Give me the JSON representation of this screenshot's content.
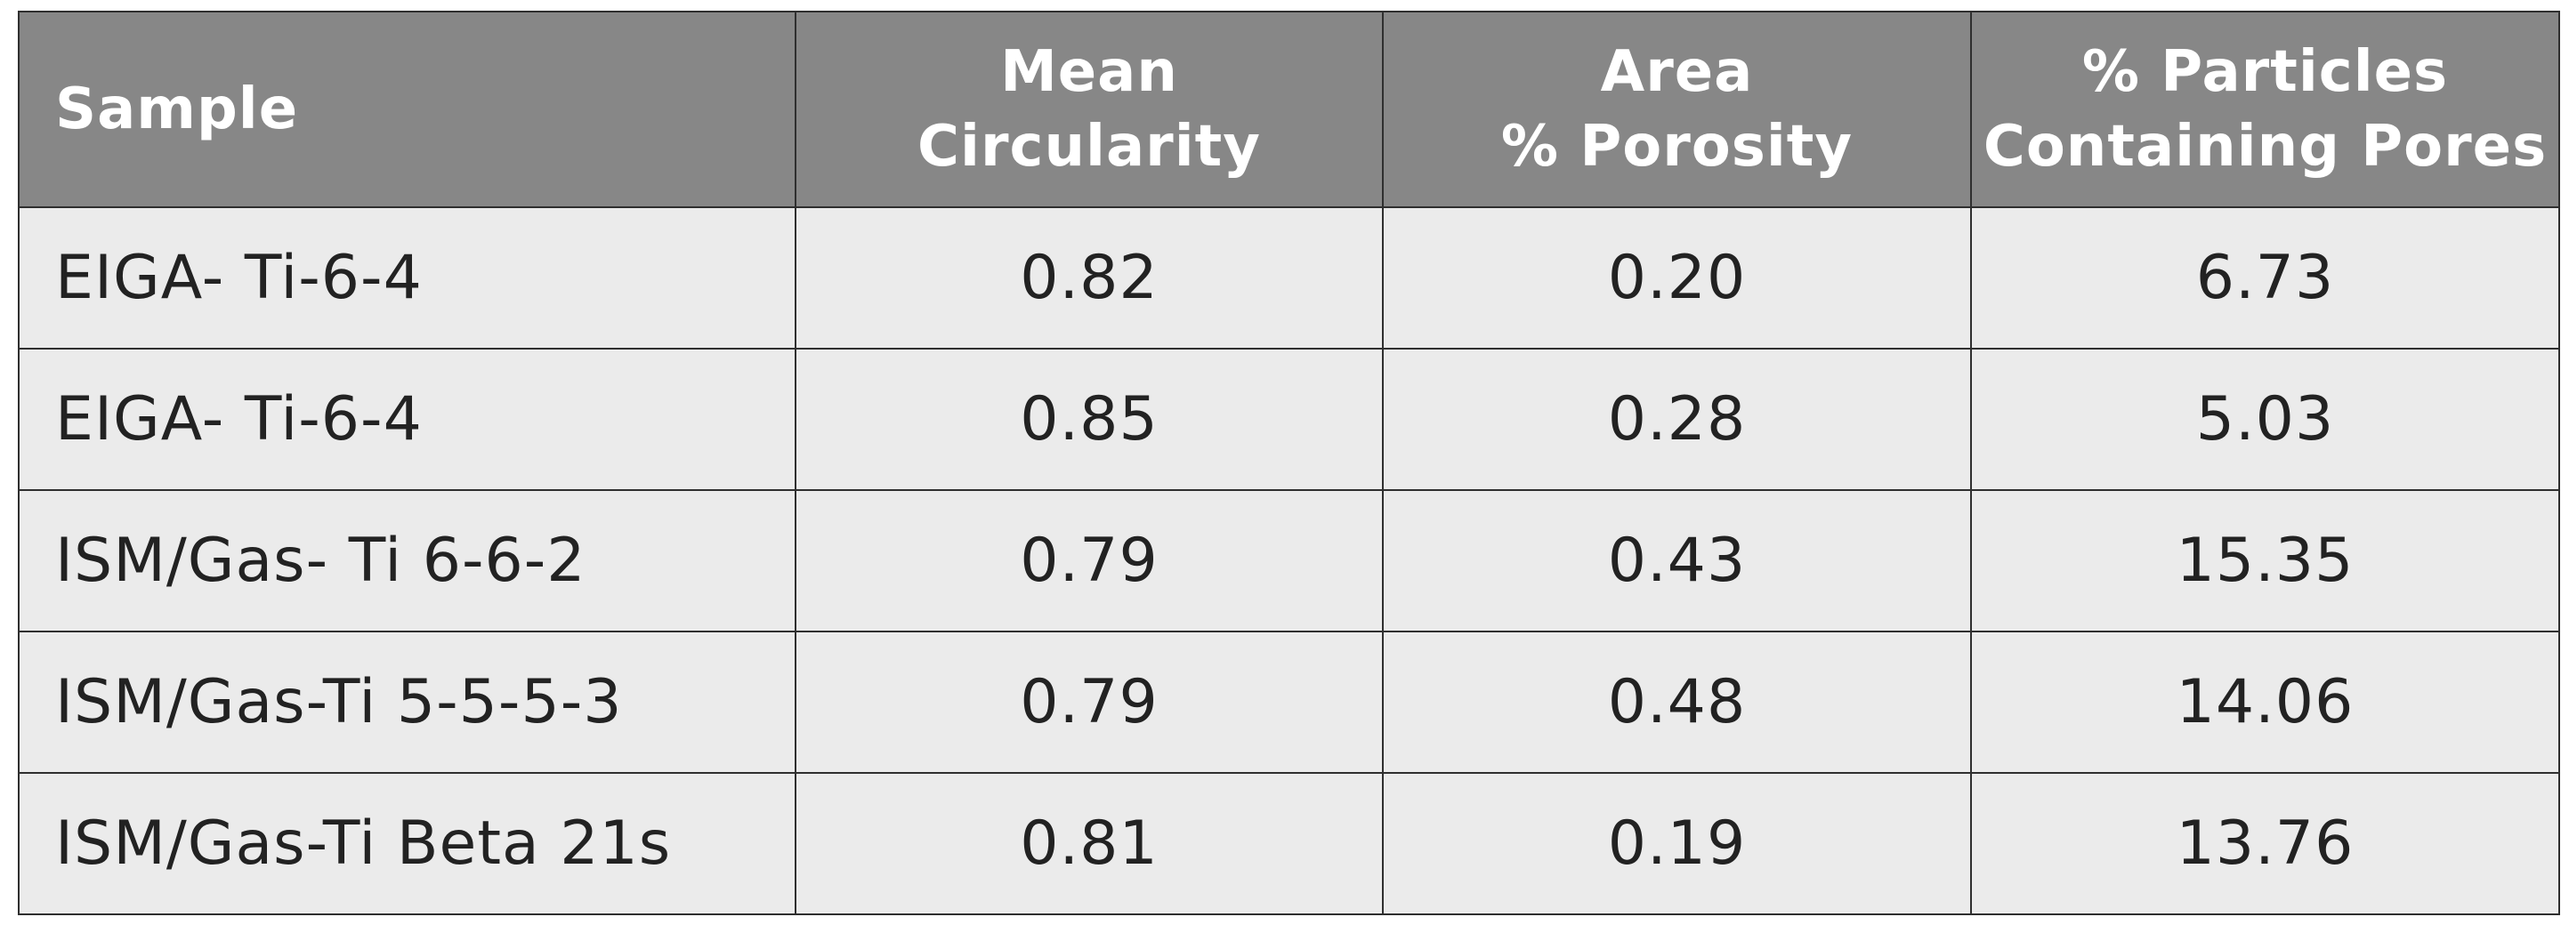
{
  "table": {
    "headers": {
      "sample": "Sample",
      "circularity": [
        "Mean",
        "Circularity"
      ],
      "porosity": [
        "Area",
        "% Porosity"
      ],
      "pores": [
        "% Particles",
        "Containing Pores"
      ]
    },
    "rows": [
      {
        "sample": "EIGA- Ti-6-4",
        "circularity": "0.82",
        "porosity": "0.20",
        "pores": "6.73"
      },
      {
        "sample": "EIGA- Ti-6-4",
        "circularity": "0.85",
        "porosity": "0.28",
        "pores": "5.03"
      },
      {
        "sample": "ISM/Gas- Ti 6-6-2",
        "circularity": "0.79",
        "porosity": "0.43",
        "pores": "15.35"
      },
      {
        "sample": "ISM/Gas-Ti 5-5-5-3",
        "circularity": "0.79",
        "porosity": "0.48",
        "pores": "14.06"
      },
      {
        "sample": "ISM/Gas-Ti Beta 21s",
        "circularity": "0.81",
        "porosity": "0.19",
        "pores": "13.76"
      }
    ]
  },
  "colors": {
    "header_background": "#878787",
    "header_text": "#ffffff",
    "cell_background": "#ebebeb",
    "cell_text": "#222222",
    "border": "#2f2f2f"
  }
}
